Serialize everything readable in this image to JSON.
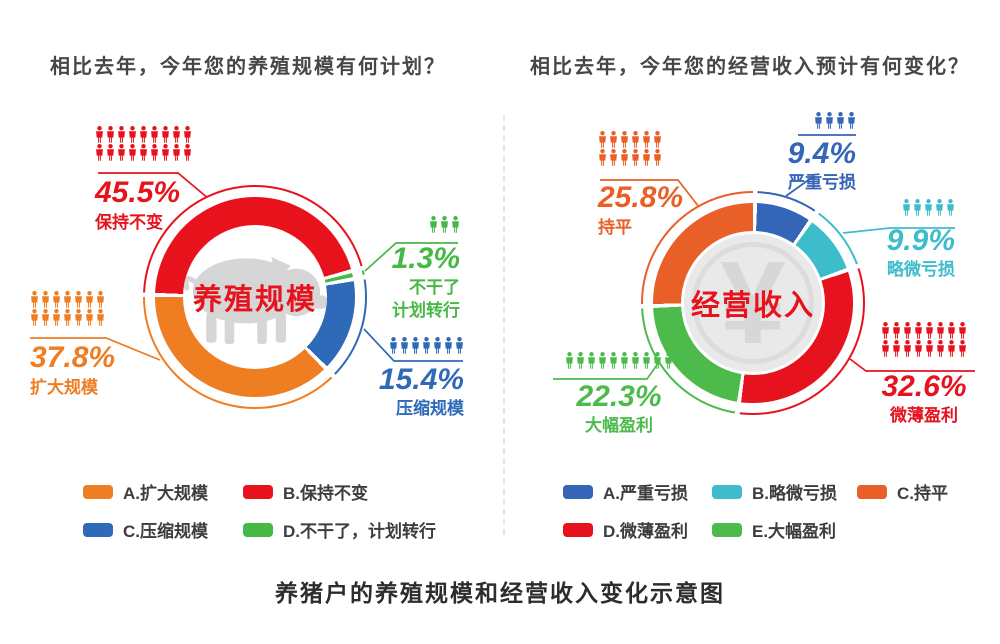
{
  "page": {
    "caption": "养猪户的养殖规模和经营收入变化示意图"
  },
  "charts": [
    {
      "question": "相比去年，今年您的养殖规模有何计划？",
      "center_label": "养殖规模",
      "center_icon": "pig",
      "center_color": "#e8121c",
      "start_angle": -90,
      "segments": [
        {
          "color": "#e8121c",
          "pct": 45.5
        },
        {
          "color": "#45b845",
          "pct": 1.3
        },
        {
          "color": "#2f6ab8",
          "pct": 15.4
        },
        {
          "color": "#ef7d22",
          "pct": 37.8
        }
      ],
      "labels": [
        {
          "value": "45.5%",
          "name": "保持不变",
          "color": "#e8121c",
          "icon_rows": [
            9,
            9
          ]
        },
        {
          "value": "37.8%",
          "name": "扩大规模",
          "color": "#ef7d22",
          "icon_rows": [
            7,
            7
          ]
        },
        {
          "value": "1.3%",
          "name": "不干了",
          "name2": "计划转行",
          "color": "#45b845",
          "icon_rows": [
            3
          ]
        },
        {
          "value": "15.4%",
          "name": "压缩规模",
          "color": "#2f6ab8",
          "icon_rows": [
            7
          ]
        }
      ],
      "legend": [
        {
          "label": "A.扩大规模",
          "color": "#ef7d22"
        },
        {
          "label": "B.保持不变",
          "color": "#e8121c"
        },
        {
          "label": "C.压缩规模",
          "color": "#2f6ab8"
        },
        {
          "label": "D.不干了，计划转行",
          "color": "#45b845"
        }
      ]
    },
    {
      "question": "相比去年，今年您的经营收入预计有何变化？",
      "center_label": "经营收入",
      "center_icon": "coin",
      "center_symbol": "¥",
      "center_color": "#e8121c",
      "start_angle": 0,
      "segments": [
        {
          "color": "#3465b7",
          "pct": 9.4
        },
        {
          "color": "#3dbdcb",
          "pct": 9.9
        },
        {
          "color": "#e6131e",
          "pct": 32.6
        },
        {
          "color": "#4cbb4c",
          "pct": 22.3
        },
        {
          "color": "#e85f28",
          "pct": 25.8
        }
      ],
      "labels": [
        {
          "value": "25.8%",
          "name": "持平",
          "color": "#e85f28",
          "icon_rows": [
            6,
            6
          ]
        },
        {
          "value": "9.4%",
          "name": "严重亏损",
          "color": "#3465b7",
          "icon_rows": [
            4
          ]
        },
        {
          "value": "9.9%",
          "name": "略微亏损",
          "color": "#3dbdcb",
          "icon_rows": [
            5
          ]
        },
        {
          "value": "32.6%",
          "name": "微薄盈利",
          "color": "#e6131e",
          "icon_rows": [
            8,
            8
          ]
        },
        {
          "value": "22.3%",
          "name": "大幅盈利",
          "color": "#4cbb4c",
          "icon_rows": [
            10
          ]
        }
      ],
      "legend": [
        {
          "label": "A.严重亏损",
          "color": "#3465b7"
        },
        {
          "label": "B.略微亏损",
          "color": "#3dbdcb"
        },
        {
          "label": "C.持平",
          "color": "#e85f28"
        },
        {
          "label": "D.微薄盈利",
          "color": "#e6131e"
        },
        {
          "label": "E.大幅盈利",
          "color": "#4cbb4c"
        }
      ]
    }
  ],
  "chart_data": [
    {
      "type": "pie",
      "title": "相比去年，今年您的养殖规模有何计划？",
      "center_label": "养殖规模",
      "labels": [
        "A.扩大规模",
        "B.保持不变",
        "C.压缩规模",
        "D.不干了，计划转行"
      ],
      "values": [
        37.8,
        45.5,
        15.4,
        1.3
      ],
      "colors": [
        "#ef7d22",
        "#e8121c",
        "#2f6ab8",
        "#45b845"
      ],
      "unit": "%",
      "legend_position": "bottom"
    },
    {
      "type": "pie",
      "title": "相比去年，今年您的经营收入预计有何变化？",
      "center_label": "经营收入",
      "labels": [
        "A.严重亏损",
        "B.略微亏损",
        "C.持平",
        "D.微薄盈利",
        "E.大幅盈利"
      ],
      "values": [
        9.4,
        9.9,
        25.8,
        32.6,
        22.3
      ],
      "colors": [
        "#3465b7",
        "#3dbdcb",
        "#e85f28",
        "#e6131e",
        "#4cbb4c"
      ],
      "unit": "%",
      "legend_position": "bottom"
    }
  ]
}
